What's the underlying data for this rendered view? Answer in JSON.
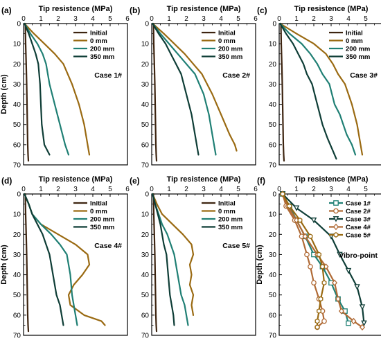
{
  "colors": {
    "initial": "#3d2410",
    "0mm": "#9a6a12",
    "200mm": "#1f7f74",
    "350mm": "#0e3d36",
    "case1": "#1f7f74",
    "case2": "#b06a35",
    "case3": "#0e3d36",
    "case4": "#b06a35",
    "case5": "#9a6a12"
  },
  "chart_data": [
    {
      "type": "line",
      "panel_label": "(a)",
      "xlabel": "Tip resistence (MPa)",
      "ylabel": "Depth (cm)",
      "xlim": [
        0,
        6
      ],
      "ylim": [
        0,
        70
      ],
      "x_axis_position": "top",
      "y_inverted": true,
      "xticks": [
        "0",
        "1",
        "2",
        "3",
        "4",
        "5",
        "6"
      ],
      "yticks": [
        "0",
        "10",
        "20",
        "30",
        "40",
        "50",
        "60",
        "70"
      ],
      "annotation": "Case 1#",
      "legend_position": "top-right",
      "series": [
        {
          "name": "Initial",
          "color_key": "initial",
          "x": [
            0.1,
            0.12,
            0.15,
            0.18,
            0.2,
            0.22,
            0.24,
            0.26,
            0.28
          ],
          "y": [
            0,
            10,
            20,
            30,
            40,
            50,
            60,
            65,
            68
          ]
        },
        {
          "name": "0 mm",
          "color_key": "0mm",
          "x": [
            0.05,
            0.6,
            1.2,
            1.8,
            2.3,
            2.8,
            3.2,
            3.5,
            3.7,
            3.8
          ],
          "y": [
            0,
            5,
            10,
            15,
            20,
            30,
            40,
            50,
            60,
            65
          ]
        },
        {
          "name": "200 mm",
          "color_key": "200mm",
          "x": [
            0.05,
            0.4,
            0.8,
            1.1,
            1.3,
            1.5,
            1.8,
            2.1,
            2.4,
            2.6
          ],
          "y": [
            0,
            5,
            10,
            15,
            20,
            30,
            40,
            50,
            60,
            65
          ]
        },
        {
          "name": "350 mm",
          "color_key": "350mm",
          "x": [
            0.05,
            0.3,
            0.5,
            0.7,
            0.85,
            0.95,
            1.0,
            1.05,
            1.2,
            1.5
          ],
          "y": [
            0,
            5,
            10,
            15,
            20,
            30,
            40,
            50,
            60,
            65
          ]
        }
      ]
    },
    {
      "type": "line",
      "panel_label": "(b)",
      "xlabel": "Tip resistence (MPa)",
      "ylabel": "",
      "xlim": [
        0,
        6
      ],
      "ylim": [
        0,
        70
      ],
      "x_axis_position": "top",
      "y_inverted": true,
      "xticks": [
        "0",
        "1",
        "2",
        "3",
        "4",
        "5",
        "6"
      ],
      "yticks": [
        "0",
        "10",
        "20",
        "30",
        "40",
        "50",
        "60",
        "70"
      ],
      "annotation": "Case 2#",
      "legend_position": "top-right",
      "series": [
        {
          "name": "Initial",
          "color_key": "initial",
          "x": [
            0.1,
            0.12,
            0.15,
            0.18,
            0.2,
            0.22,
            0.24,
            0.26,
            0.28
          ],
          "y": [
            0,
            10,
            20,
            30,
            40,
            50,
            60,
            65,
            68
          ]
        },
        {
          "name": "0 mm",
          "color_key": "0mm",
          "x": [
            0.05,
            0.7,
            1.3,
            1.9,
            2.4,
            2.9,
            3.5,
            4.0,
            4.5,
            4.8,
            4.9
          ],
          "y": [
            0,
            5,
            10,
            15,
            20,
            25,
            35,
            45,
            55,
            60,
            63
          ]
        },
        {
          "name": "200 mm",
          "color_key": "200mm",
          "x": [
            0.05,
            0.5,
            1.0,
            1.5,
            2.0,
            2.5,
            3.0,
            3.3,
            3.5,
            3.6,
            3.7
          ],
          "y": [
            0,
            5,
            10,
            15,
            20,
            25,
            35,
            45,
            55,
            60,
            65
          ]
        },
        {
          "name": "350 mm",
          "color_key": "350mm",
          "x": [
            0.05,
            0.4,
            0.8,
            1.1,
            1.4,
            1.7,
            2.0,
            2.3,
            2.5,
            2.6,
            2.7
          ],
          "y": [
            0,
            5,
            10,
            15,
            20,
            25,
            35,
            45,
            55,
            60,
            65
          ]
        }
      ]
    },
    {
      "type": "line",
      "panel_label": "(c)",
      "xlabel": "Tip resistence (MPa)",
      "ylabel": "",
      "xlim": [
        0,
        6
      ],
      "ylim": [
        0,
        70
      ],
      "x_axis_position": "top",
      "y_inverted": true,
      "xticks": [
        "0",
        "1",
        "2",
        "3",
        "4",
        "5",
        "6"
      ],
      "yticks": [
        "0",
        "10",
        "20",
        "30",
        "40",
        "50",
        "60",
        "70"
      ],
      "annotation": "Case 3#",
      "legend_position": "top-right",
      "series": [
        {
          "name": "Initial",
          "color_key": "initial",
          "x": [
            0.1,
            0.12,
            0.15,
            0.18,
            0.2,
            0.22,
            0.24,
            0.26,
            0.28
          ],
          "y": [
            0,
            10,
            20,
            30,
            40,
            50,
            60,
            65,
            68
          ]
        },
        {
          "name": "0 mm",
          "color_key": "0mm",
          "x": [
            0.05,
            1.0,
            2.0,
            2.7,
            3.1,
            3.4,
            3.8,
            4.2,
            4.5,
            4.7,
            4.8
          ],
          "y": [
            0,
            5,
            10,
            15,
            20,
            25,
            30,
            40,
            50,
            60,
            65
          ]
        },
        {
          "name": "200 mm",
          "color_key": "200mm",
          "x": [
            0.05,
            0.6,
            1.3,
            1.8,
            2.2,
            2.5,
            2.9,
            3.2,
            3.5,
            3.9,
            4.2,
            4.4
          ],
          "y": [
            0,
            5,
            10,
            15,
            20,
            25,
            30,
            40,
            45,
            55,
            60,
            65
          ]
        },
        {
          "name": "350 mm",
          "color_key": "350mm",
          "x": [
            0.05,
            0.4,
            0.8,
            1.1,
            1.4,
            1.6,
            1.9,
            2.2,
            2.5,
            2.8,
            3.1,
            3.3
          ],
          "y": [
            0,
            5,
            10,
            15,
            20,
            25,
            30,
            40,
            50,
            57,
            63,
            67
          ]
        }
      ]
    },
    {
      "type": "line",
      "panel_label": "(d)",
      "xlabel": "Tip resistence (MPa)",
      "ylabel": "Depth (cm)",
      "xlim": [
        0,
        6
      ],
      "ylim": [
        0,
        70
      ],
      "x_axis_position": "top",
      "y_inverted": true,
      "xticks": [
        "0",
        "1",
        "2",
        "3",
        "4",
        "5",
        "6"
      ],
      "yticks": [
        "0",
        "10",
        "20",
        "30",
        "40",
        "50",
        "60",
        "70"
      ],
      "annotation": "Case 4#",
      "legend_position": "top-right",
      "series": [
        {
          "name": "Initial",
          "color_key": "initial",
          "x": [
            0.1,
            0.12,
            0.15,
            0.18,
            0.2,
            0.22,
            0.24,
            0.26,
            0.28
          ],
          "y": [
            0,
            10,
            20,
            30,
            40,
            50,
            60,
            65,
            68
          ]
        },
        {
          "name": "0 mm",
          "color_key": "0mm",
          "x": [
            0.05,
            0.3,
            0.5,
            1.0,
            2.0,
            3.0,
            3.7,
            3.8,
            3.4,
            2.9,
            2.6,
            2.7,
            3.5,
            4.5,
            4.7
          ],
          "y": [
            0,
            5,
            10,
            15,
            20,
            25,
            30,
            35,
            40,
            45,
            50,
            55,
            60,
            63,
            65
          ]
        },
        {
          "name": "200 mm",
          "color_key": "200mm",
          "x": [
            0.05,
            0.3,
            0.5,
            1.0,
            1.6,
            2.1,
            2.5,
            2.7,
            2.8,
            2.9,
            3.0,
            3.1
          ],
          "y": [
            0,
            5,
            10,
            15,
            20,
            25,
            30,
            40,
            50,
            55,
            60,
            65
          ]
        },
        {
          "name": "350 mm",
          "color_key": "350mm",
          "x": [
            0.05,
            0.3,
            0.5,
            0.8,
            1.1,
            1.3,
            1.5,
            1.7,
            1.9,
            2.1,
            2.2,
            2.3
          ],
          "y": [
            0,
            5,
            10,
            15,
            20,
            25,
            30,
            40,
            50,
            55,
            60,
            65
          ]
        }
      ]
    },
    {
      "type": "line",
      "panel_label": "(e)",
      "xlabel": "Tip resistence (MPa)",
      "ylabel": "",
      "xlim": [
        0,
        6
      ],
      "ylim": [
        0,
        70
      ],
      "x_axis_position": "top",
      "y_inverted": true,
      "xticks": [
        "0",
        "1",
        "2",
        "3",
        "4",
        "5",
        "6"
      ],
      "yticks": [
        "0",
        "10",
        "20",
        "30",
        "40",
        "50",
        "60",
        "70"
      ],
      "annotation": "Case 5#",
      "legend_position": "top-right",
      "series": [
        {
          "name": "Initial",
          "color_key": "initial",
          "x": [
            0.1,
            0.12,
            0.15,
            0.18,
            0.2,
            0.22,
            0.24,
            0.26,
            0.28
          ],
          "y": [
            0,
            10,
            20,
            30,
            40,
            50,
            60,
            65,
            68
          ]
        },
        {
          "name": "0 mm",
          "color_key": "0mm",
          "x": [
            0.05,
            0.3,
            0.6,
            1.2,
            1.8,
            2.3,
            2.4,
            2.2,
            2.3,
            2.2,
            2.4,
            2.3,
            2.4
          ],
          "y": [
            0,
            5,
            10,
            15,
            20,
            25,
            30,
            35,
            40,
            45,
            50,
            55,
            60
          ]
        },
        {
          "name": "200 mm",
          "color_key": "200mm",
          "x": [
            0.05,
            0.2,
            0.4,
            0.6,
            0.9,
            1.1,
            1.3,
            1.5,
            1.7,
            1.9,
            2.0,
            2.1
          ],
          "y": [
            0,
            5,
            10,
            15,
            20,
            25,
            30,
            40,
            50,
            55,
            60,
            65
          ]
        },
        {
          "name": "350 mm",
          "color_key": "350mm",
          "x": [
            0.05,
            0.2,
            0.35,
            0.5,
            0.6,
            0.7,
            0.85,
            0.95,
            1.05,
            1.15,
            1.25,
            1.3
          ],
          "y": [
            0,
            5,
            10,
            15,
            20,
            25,
            30,
            40,
            50,
            55,
            60,
            65
          ]
        }
      ]
    },
    {
      "type": "line",
      "panel_label": "(f)",
      "xlabel": "Tip resistence (MPa)",
      "ylabel": "Depth (cm)",
      "xlim": [
        0,
        6
      ],
      "ylim": [
        0,
        70
      ],
      "x_axis_position": "top",
      "y_inverted": true,
      "xticks": [
        "0",
        "1",
        "2",
        "3",
        "4",
        "5",
        "6"
      ],
      "yticks": [
        "0",
        "10",
        "20",
        "30",
        "40",
        "50",
        "60",
        "70"
      ],
      "annotation": "Vibro-point",
      "legend_position": "top-right",
      "markers": true,
      "series": [
        {
          "name": "Case 1#",
          "color_key": "case1",
          "marker": "square",
          "x": [
            0.2,
            0.6,
            1.0,
            1.5,
            2.0,
            2.5,
            3.0,
            3.4,
            3.8,
            4.0
          ],
          "y": [
            0,
            6,
            13,
            21,
            30,
            36,
            44,
            52,
            58,
            64
          ]
        },
        {
          "name": "Case 2#",
          "color_key": "case2",
          "marker": "circle",
          "x": [
            0.2,
            0.4,
            0.9,
            1.3,
            1.6,
            1.8,
            2.0,
            2.3,
            2.5,
            2.6,
            2.2
          ],
          "y": [
            0,
            6,
            13,
            21,
            30,
            36,
            44,
            52,
            58,
            63,
            66
          ]
        },
        {
          "name": "Case 3#",
          "color_key": "case3",
          "marker": "triangle-down",
          "x": [
            0.2,
            1.0,
            2.0,
            3.0,
            3.5,
            4.0,
            4.5,
            4.8,
            4.9
          ],
          "y": [
            0,
            7,
            13,
            21,
            30,
            38,
            46,
            56,
            64
          ]
        },
        {
          "name": "Case 4#",
          "color_key": "case4",
          "marker": "diamond",
          "x": [
            0.2,
            0.5,
            1.0,
            1.5,
            2.2,
            2.7,
            3.2,
            3.4,
            3.6,
            4.3,
            4.8
          ],
          "y": [
            0,
            6,
            13,
            21,
            30,
            36,
            44,
            52,
            58,
            63,
            66
          ]
        },
        {
          "name": "Case 5#",
          "color_key": "case5",
          "marker": "hexagon",
          "x": [
            0.2,
            0.6,
            1.2,
            1.8,
            2.3,
            2.5,
            2.6,
            2.4,
            2.3,
            2.2,
            2.2
          ],
          "y": [
            0,
            6,
            13,
            21,
            30,
            36,
            44,
            52,
            58,
            63,
            66
          ]
        }
      ]
    }
  ]
}
